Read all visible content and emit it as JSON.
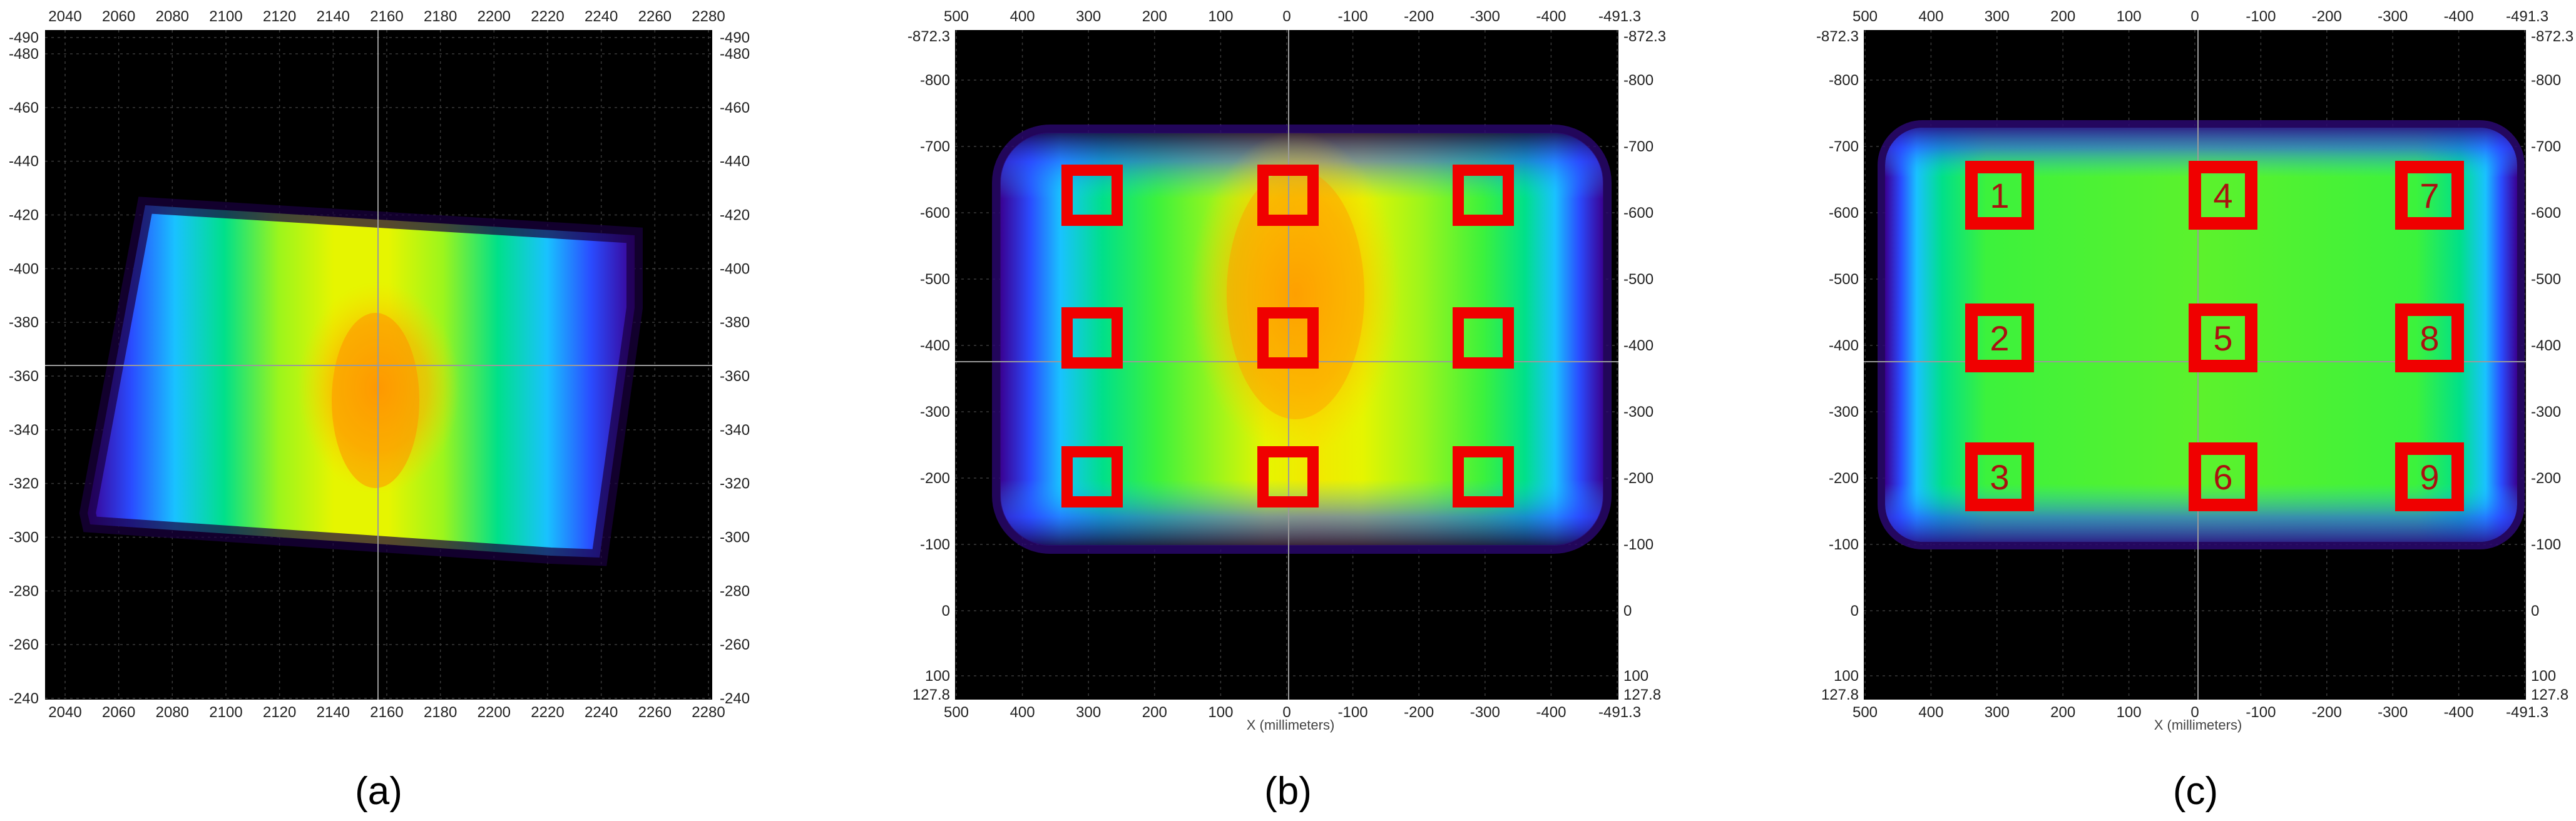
{
  "captions": [
    "(a)",
    "(b)",
    "(c)"
  ],
  "chart_data": [
    {
      "type": "heatmap",
      "panel": "a",
      "x_ticks": [
        "2040",
        "2060",
        "2080",
        "2100",
        "2120",
        "2140",
        "2160",
        "2180",
        "2200",
        "2220",
        "2240",
        "2260",
        "2280"
      ],
      "y_ticks": [
        "-490",
        "-480",
        "-460",
        "-440",
        "-420",
        "-400",
        "-380",
        "-360",
        "-340",
        "-320",
        "-300",
        "-280",
        "-260",
        "-240"
      ],
      "xlabel": "",
      "grid": true,
      "crosshair": {
        "x": 2160,
        "y": -365
      },
      "colormap": [
        "#1a0040",
        "#3a0090",
        "#2a4cff",
        "#19c2ff",
        "#00e08a",
        "#3cf23c",
        "#9cf51c",
        "#e6f500",
        "#ffd400",
        "#ffa000"
      ]
    },
    {
      "type": "heatmap",
      "panel": "b",
      "x_ticks": [
        "500",
        "400",
        "300",
        "200",
        "100",
        "0",
        "-100",
        "-200",
        "-300",
        "-400",
        "-491.3"
      ],
      "y_ticks_left": [
        "-872.3",
        "-800",
        "-700",
        "-600",
        "-500",
        "-400",
        "-300",
        "-200",
        "-100",
        "0",
        "100",
        "127.8"
      ],
      "y_ticks_right": [
        "-872.3",
        "-800",
        "-700",
        "-600",
        "-500",
        "-400",
        "-300",
        "-200",
        "-100",
        "0",
        "100",
        "127.8"
      ],
      "xlabel": "X (millimeters)",
      "grid": true,
      "markers": [
        "",
        "",
        "",
        "",
        "",
        "",
        "",
        "",
        ""
      ]
    },
    {
      "type": "heatmap",
      "panel": "c",
      "x_ticks": [
        "500",
        "400",
        "300",
        "200",
        "100",
        "0",
        "-100",
        "-200",
        "-300",
        "-400",
        "-491.3"
      ],
      "y_ticks_left": [
        "-872.3",
        "-800",
        "-700",
        "-600",
        "-500",
        "-400",
        "-300",
        "-200",
        "-100",
        "0",
        "100",
        "127.8"
      ],
      "y_ticks_right": [
        "-872.3",
        "-800",
        "-700",
        "-600",
        "-500",
        "-400",
        "-300",
        "-200",
        "-100",
        "0",
        "100",
        "127.8"
      ],
      "xlabel": "X (millimeters)",
      "grid": true,
      "markers": [
        "1",
        "2",
        "3",
        "4",
        "5",
        "6",
        "7",
        "8",
        "9"
      ]
    }
  ]
}
